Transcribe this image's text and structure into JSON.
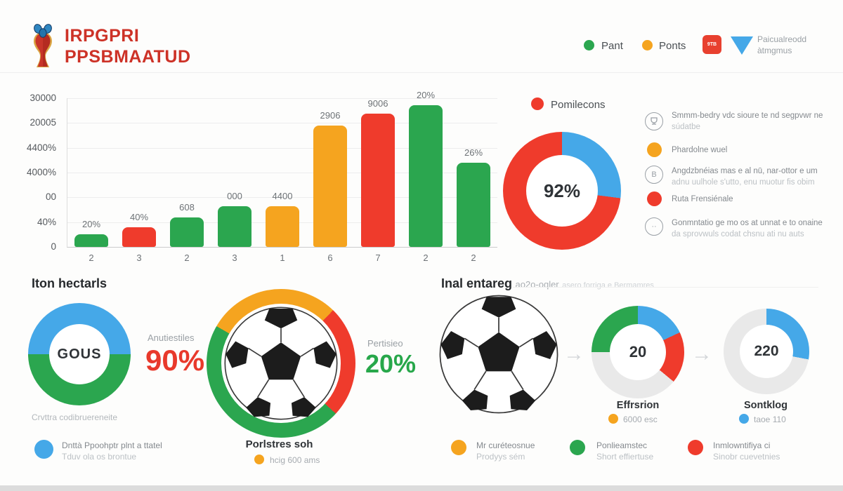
{
  "header": {
    "title_line1": "IRPGPRI",
    "title_line2": "PPSBMAATUD",
    "legend": {
      "item1": {
        "label": "Pant",
        "color": "#2ba64f"
      },
      "item2": {
        "label": "Ponts",
        "color": "#f5a41f"
      },
      "item3": {
        "badge_text": "9TB",
        "color": "#e8402f"
      },
      "item4": {
        "line1": "Paicualreodd",
        "line2": "àtmgmus",
        "color": "#45a8e8"
      }
    }
  },
  "sections": {
    "left_title": "Iton hectarls",
    "right_title": "Inal entareg",
    "right_title_suffix": "ao2o-oqler",
    "right_title_note": "asero forriga e Bermamres"
  },
  "chart_data": [
    {
      "id": "main-bar-chart",
      "type": "bar",
      "categories": [
        "2",
        "3",
        "2",
        "3",
        "1",
        "6",
        "7",
        "2",
        "2"
      ],
      "values": [
        2500,
        4000,
        6000,
        8200,
        8200,
        24500,
        26900,
        28600,
        17000
      ],
      "bar_labels": [
        "20%",
        "40%",
        "608",
        "000",
        "4400",
        "2906",
        "9006",
        "20%",
        "26%"
      ],
      "bar_colors": [
        "#2ba64f",
        "#ef3b2c",
        "#2ba64f",
        "#2ba64f",
        "#f5a41f",
        "#f5a41f",
        "#ef3b2c",
        "#2ba64f",
        "#2ba64f"
      ],
      "yticks": [
        "30000",
        "20005",
        "4400%",
        "4000%",
        "00",
        "40%",
        "0"
      ],
      "ylim": [
        0,
        30000
      ],
      "grid": true,
      "legend_position": "none"
    },
    {
      "id": "participants-donut",
      "type": "pie",
      "center_label": "92%",
      "start_deg": 0,
      "segments": [
        {
          "name": "blue",
          "color": "#45a8e8",
          "pct": 27
        },
        {
          "name": "red",
          "color": "#ef3b2c",
          "pct": 73
        }
      ],
      "legend": [
        {
          "label": "Pomilecons",
          "color": "#ef3b2c"
        }
      ]
    },
    {
      "id": "gous-donut",
      "type": "pie",
      "center_label": "GOUS",
      "start_deg": 270,
      "segments": [
        {
          "name": "blue",
          "color": "#45a8e8",
          "pct": 50
        },
        {
          "name": "green",
          "color": "#2ba64f",
          "pct": 50
        }
      ],
      "stat_label": "Anutiestiles",
      "stat_value": "90%",
      "caption": "Crvttra codibruereneite"
    },
    {
      "id": "ball-ring-donut",
      "type": "pie",
      "center_label": "",
      "start_deg": 300,
      "segments": [
        {
          "name": "orange",
          "color": "#f5a41f",
          "pct": 29
        },
        {
          "name": "red",
          "color": "#ef3b2c",
          "pct": 24.5
        },
        {
          "name": "green",
          "color": "#2ba64f",
          "pct": 46.5
        }
      ],
      "stat_label": "Pertisieo",
      "stat_value": "20%",
      "title": "Porlstres soh",
      "sub_label": "hcig 600 ams"
    },
    {
      "id": "effrsrion-donut",
      "type": "pie",
      "center_label": "20",
      "start_deg": 270,
      "segments": [
        {
          "name": "green",
          "color": "#2ba64f",
          "pct": 25
        },
        {
          "name": "blue",
          "color": "#45a8e8",
          "pct": 18
        },
        {
          "name": "red",
          "color": "#ef3b2c",
          "pct": 18
        },
        {
          "name": "rest",
          "color": "#e9e9e9",
          "pct": 39
        }
      ],
      "title": "Effrsrion",
      "sub_label": "6000 esc"
    },
    {
      "id": "sontklog-donut",
      "type": "pie",
      "center_label": "220",
      "start_deg": 0,
      "segments": [
        {
          "name": "blue",
          "color": "#45a8e8",
          "pct": 28
        },
        {
          "name": "rest",
          "color": "#e9e9e9",
          "pct": 72
        }
      ],
      "title": "Sontklog",
      "sub_label": "taoe 110"
    }
  ],
  "right_list": {
    "items": [
      {
        "icon": "trophy-circle-icon",
        "line1": "Smmm-bedry vdc sioure te nd segpvwr ne",
        "line2": "súdatbe"
      },
      {
        "icon": "orange-dot-icon",
        "line1": "Phardolne wuel",
        "line2": ""
      },
      {
        "icon": "badge-circle-icon",
        "line1": "Angdzbnéias mas e al nū, nar-ottor e um",
        "line2": "adnu uulhole s'utto, enu muotur fis obim"
      },
      {
        "icon": "red-dot-icon",
        "line1": "Ruta Frensiénale",
        "line2": ""
      },
      {
        "icon": "ellipsis-circle-icon",
        "line1": "Gonmntatio ge mo os at unnat e to onaine",
        "line2": "da sprovwuls codat chsnu ati nu auts"
      }
    ]
  },
  "bottom_legend": {
    "blue": {
      "line1": "Dnttà Ppoohptr plnt a ttatel",
      "line2": "Tduv ola os brontue"
    },
    "orange": {
      "line1": "Mr curéteosnue",
      "line2": "Prodyys sém"
    },
    "green": {
      "line1": "Ponlieamstec",
      "line2": "Short effiertuse"
    },
    "red": {
      "line1": "Inmlowntifiya ci",
      "line2": "Sinobr cuevetnies"
    }
  }
}
